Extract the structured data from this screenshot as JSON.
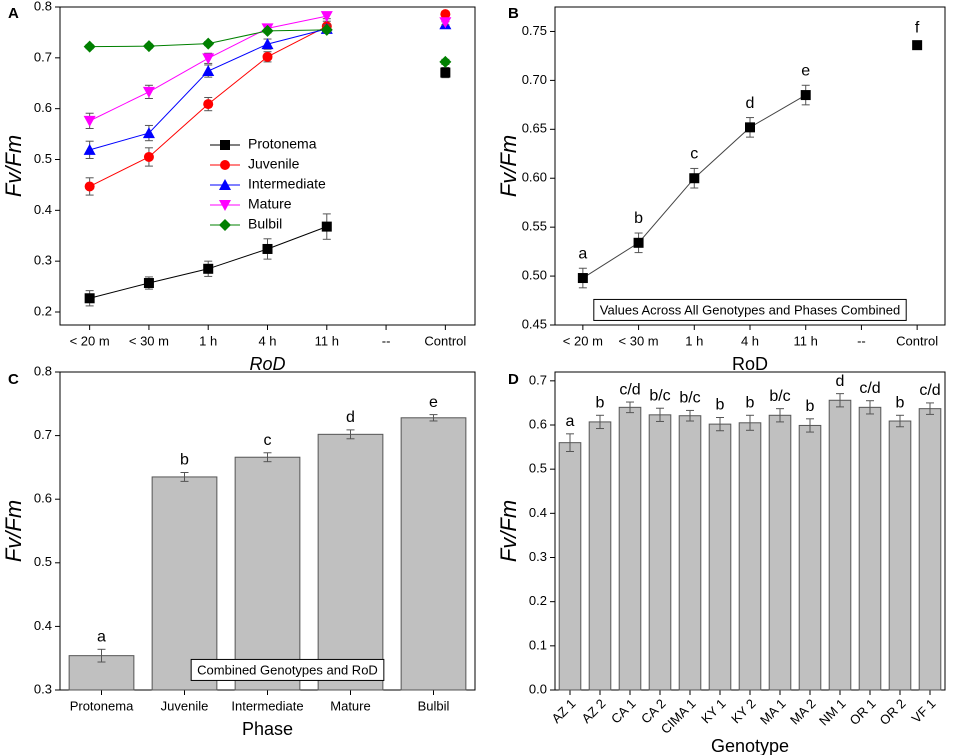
{
  "chart_data": [
    {
      "type": "line",
      "panel": "A",
      "x_label": "RoD",
      "y_label": "Fv/Fm",
      "categories": [
        "< 20 m",
        "< 30 m",
        "1 h",
        "4 h",
        "11 h",
        "--",
        "Control"
      ],
      "ylim": [
        0.2,
        0.8
      ],
      "yticks": [
        0.2,
        0.3,
        0.4,
        0.5,
        0.6,
        0.7,
        0.8
      ],
      "series": [
        {
          "name": "Protonema",
          "color": "#000000",
          "marker": "square",
          "values": [
            0.227,
            0.257,
            0.285,
            0.324,
            0.368,
            null,
            0.671
          ],
          "errors": [
            0.015,
            0.012,
            0.015,
            0.02,
            0.025,
            null,
            0.01
          ]
        },
        {
          "name": "Juvenile",
          "color": "#ff0000",
          "marker": "circle",
          "values": [
            0.447,
            0.505,
            0.609,
            0.702,
            0.762,
            null,
            0.786
          ],
          "errors": [
            0.017,
            0.018,
            0.013,
            0.01,
            0.01,
            null,
            0.005
          ]
        },
        {
          "name": "Intermediate",
          "color": "#0000ff",
          "marker": "triangle-up",
          "values": [
            0.519,
            0.552,
            0.674,
            0.727,
            0.757,
            null,
            0.766
          ],
          "errors": [
            0.017,
            0.015,
            0.012,
            0.01,
            0.008,
            null,
            0.005
          ]
        },
        {
          "name": "Mature",
          "color": "#ff00ff",
          "marker": "triangle-down",
          "values": [
            0.576,
            0.633,
            0.699,
            0.758,
            0.782,
            null,
            0.77
          ],
          "errors": [
            0.015,
            0.013,
            0.01,
            0.008,
            0.005,
            null,
            0.005
          ]
        },
        {
          "name": "Bulbil",
          "color": "#008000",
          "marker": "diamond",
          "values": [
            0.722,
            0.723,
            0.728,
            0.753,
            0.755,
            null,
            0.692
          ],
          "errors": [
            0.004,
            0.004,
            0.004,
            0.004,
            0.005,
            null,
            0.005
          ]
        }
      ]
    },
    {
      "type": "line",
      "panel": "B",
      "x_label": "RoD",
      "y_label": "Fv/Fm",
      "annotation": "Values Across All Genotypes and Phases Combined",
      "categories": [
        "< 20 m",
        "< 30 m",
        "1 h",
        "4 h",
        "11 h",
        "--",
        "Control"
      ],
      "ylim": [
        0.45,
        0.775
      ],
      "yticks": [
        {
          "value": 0.45,
          "label": "0.45"
        },
        {
          "value": 0.5,
          "label": "0.50"
        },
        {
          "value": 0.55,
          "label": "0.55"
        },
        {
          "value": 0.6,
          "label": "0.60"
        },
        {
          "value": 0.65,
          "label": "0.65"
        },
        {
          "value": 0.7,
          "label": "0.70"
        },
        {
          "value": 0.75,
          "label": "0.75"
        }
      ],
      "series": [
        {
          "color": "#000000",
          "marker": "square",
          "values": [
            0.498,
            0.534,
            0.6,
            0.652,
            0.685,
            null,
            0.736
          ],
          "errors": [
            0.01,
            0.01,
            0.01,
            0.01,
            0.01,
            null,
            0.003
          ],
          "group_labels": [
            "a",
            "b",
            "c",
            "d",
            "e",
            null,
            "f"
          ]
        }
      ]
    },
    {
      "type": "bar",
      "panel": "C",
      "x_label": "Phase",
      "y_label": "Fv/Fm",
      "annotation": "Combined Genotypes and RoD",
      "categories": [
        "Protonema",
        "Juvenile",
        "Intermediate",
        "Mature",
        "Bulbil"
      ],
      "values": [
        0.354,
        0.635,
        0.666,
        0.702,
        0.728
      ],
      "errors": [
        0.01,
        0.007,
        0.007,
        0.007,
        0.005
      ],
      "group_labels": [
        "a",
        "b",
        "c",
        "d",
        "e"
      ],
      "color": "#c0c0c0",
      "ylim": [
        0.3,
        0.8
      ],
      "yticks": [
        0.3,
        0.4,
        0.5,
        0.6,
        0.7,
        0.8
      ]
    },
    {
      "type": "bar",
      "panel": "D",
      "x_label": "Genotype",
      "y_label": "Fv/Fm",
      "categories": [
        "AZ 1",
        "AZ 2",
        "CA 1",
        "CA 2",
        "CIMA 1",
        "KY 1",
        "KY 2",
        "MA 1",
        "MA 2",
        "NM 1",
        "OR 1",
        "OR 2",
        "VF 1"
      ],
      "values": [
        0.56,
        0.607,
        0.64,
        0.623,
        0.621,
        0.602,
        0.605,
        0.622,
        0.599,
        0.656,
        0.64,
        0.609,
        0.637
      ],
      "errors": [
        0.02,
        0.015,
        0.012,
        0.015,
        0.012,
        0.015,
        0.017,
        0.015,
        0.015,
        0.015,
        0.015,
        0.013,
        0.013
      ],
      "group_labels": [
        "a",
        "b",
        "c/d",
        "b/c",
        "b/c",
        "b",
        "b",
        "b/c",
        "b",
        "d",
        "c/d",
        "b",
        "c/d"
      ],
      "color": "#c0c0c0",
      "rotate_labels": true,
      "ylim": [
        0,
        0.72
      ],
      "yticks": [
        {
          "value": 0,
          "label": "0.0"
        },
        0.1,
        0.2,
        0.3,
        0.4,
        0.5,
        0.6,
        0.7
      ]
    }
  ]
}
